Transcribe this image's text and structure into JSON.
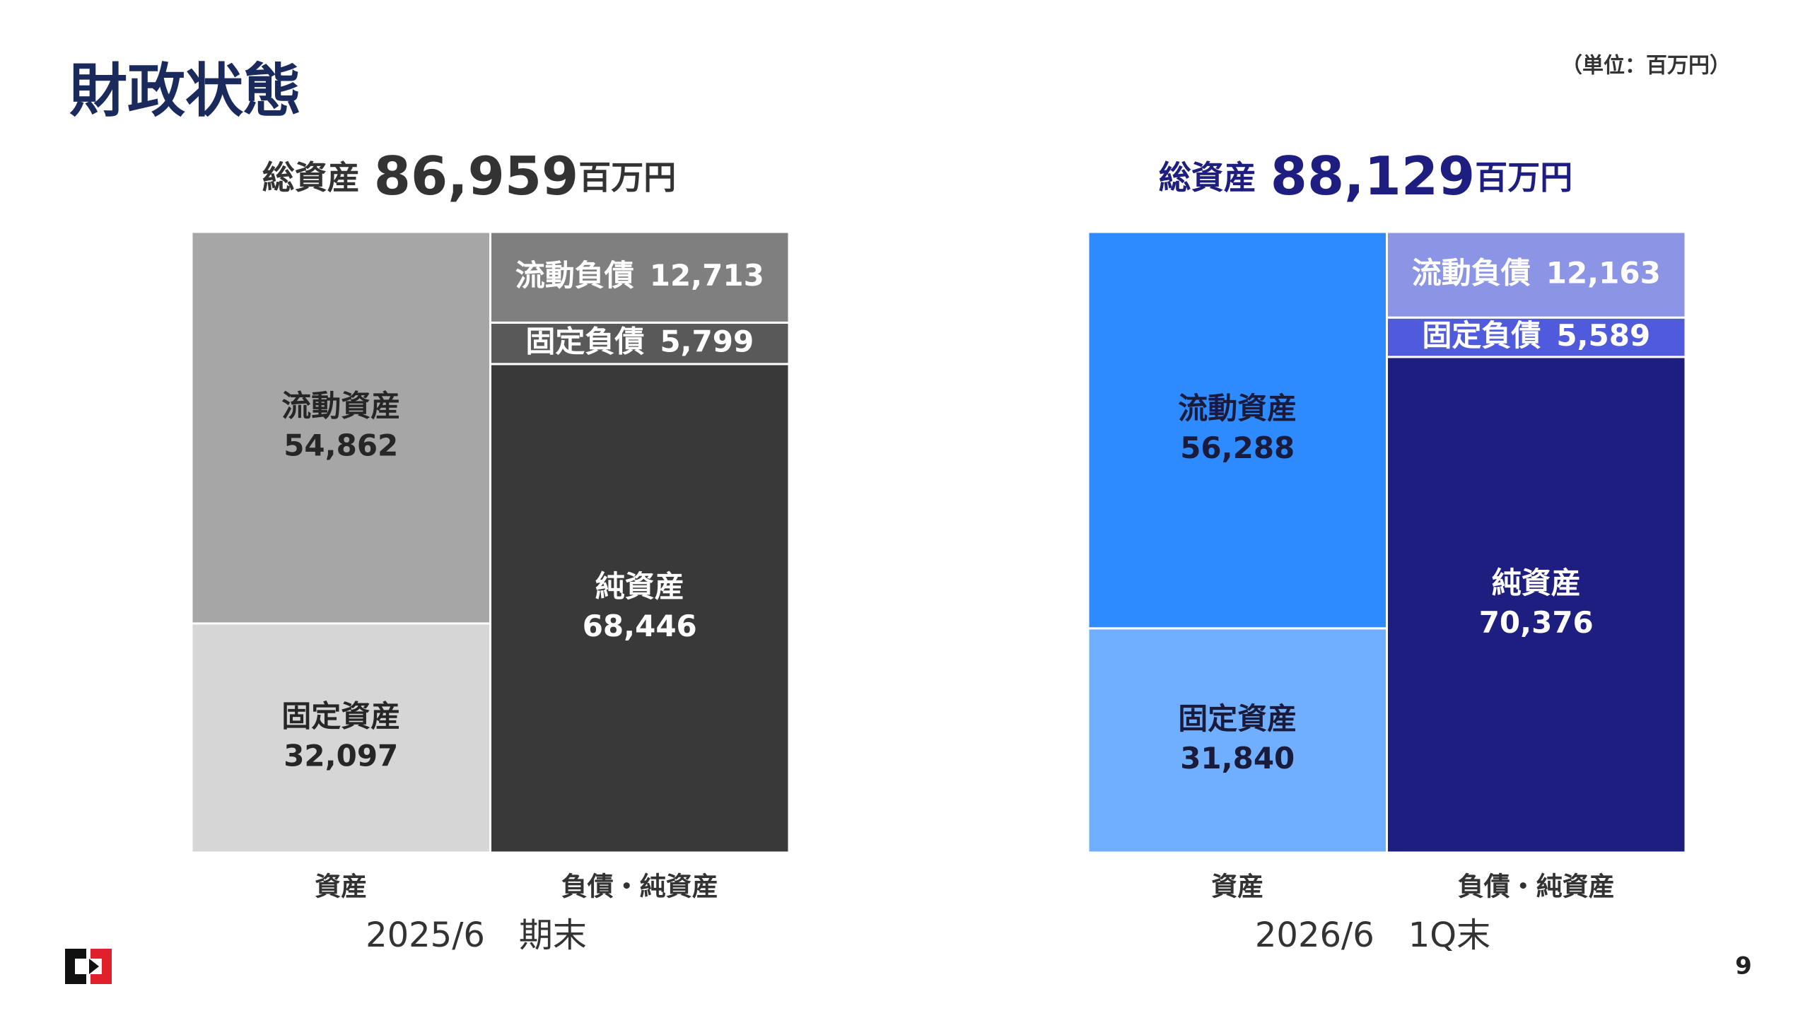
{
  "header": {
    "title": "財政状態",
    "unit": "（単位：百万円）",
    "page_number": "9"
  },
  "chart_data": [
    {
      "type": "stacked_bar",
      "total_prefix": "総資産",
      "total": 86959,
      "total_label": "86,959",
      "total_unit": "百万円",
      "total_color": "#333333",
      "categories": [
        "資産",
        "負債・純資産"
      ],
      "period": "2025/6　期末",
      "series": [
        {
          "name": "固定資産",
          "color": "#d6d6d6",
          "text_color": "#262626",
          "values": [
            32097,
            null
          ],
          "value_labels": [
            "32,097",
            null
          ]
        },
        {
          "name": "流動資産",
          "color": "#a6a6a6",
          "text_color": "#262626",
          "values": [
            54862,
            null
          ],
          "value_labels": [
            "54,862",
            null
          ]
        },
        {
          "name": "純資産",
          "color": "#3a3939",
          "text_color": "#ffffff",
          "values": [
            null,
            68446
          ],
          "value_labels": [
            null,
            "68,446"
          ]
        },
        {
          "name": "固定負債",
          "color": "#595959",
          "text_color": "#ffffff",
          "values": [
            null,
            5799
          ],
          "value_labels": [
            null,
            "5,799"
          ]
        },
        {
          "name": "流動負債",
          "color": "#7f7f7f",
          "text_color": "#ffffff",
          "values": [
            null,
            12713
          ],
          "value_labels": [
            null,
            "12,713"
          ]
        }
      ]
    },
    {
      "type": "stacked_bar",
      "total_prefix": "総資産",
      "total": 88129,
      "total_label": "88,129",
      "total_unit": "百万円",
      "total_color": "#1e1e80",
      "categories": [
        "資産",
        "負債・純資産"
      ],
      "period": "2026/6　1Q末",
      "series": [
        {
          "name": "固定資産",
          "color": "#70afff",
          "text_color": "#1a1a3a",
          "values": [
            31840,
            null
          ],
          "value_labels": [
            "31,840",
            null
          ]
        },
        {
          "name": "流動資産",
          "color": "#2e8bff",
          "text_color": "#1a1a3a",
          "values": [
            56288,
            null
          ],
          "value_labels": [
            "56,288",
            null
          ]
        },
        {
          "name": "純資産",
          "color": "#1e1e80",
          "text_color": "#ffffff",
          "values": [
            null,
            70376
          ],
          "value_labels": [
            null,
            "70,376"
          ]
        },
        {
          "name": "固定負債",
          "color": "#4f5bdc",
          "text_color": "#ffffff",
          "values": [
            null,
            5589
          ],
          "value_labels": [
            null,
            "5,589"
          ]
        },
        {
          "name": "流動負債",
          "color": "#8c94e6",
          "text_color": "#ffffff",
          "values": [
            null,
            12163
          ],
          "value_labels": [
            null,
            "12,163"
          ]
        }
      ]
    }
  ]
}
